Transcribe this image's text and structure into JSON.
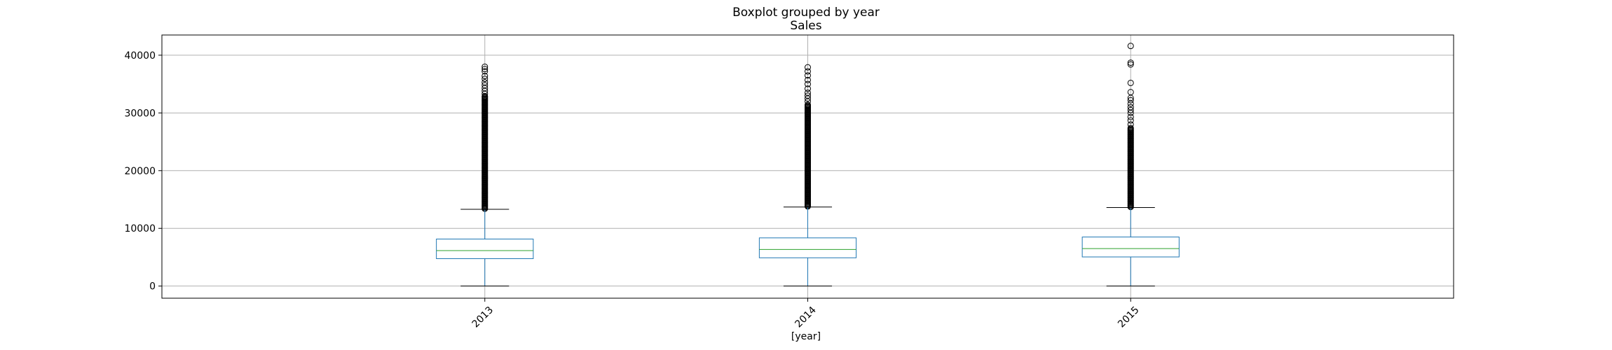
{
  "chart_data": {
    "type": "boxplot",
    "suptitle": "Boxplot grouped by year",
    "title": "Sales",
    "xlabel": "[year]",
    "ylabel": "",
    "categories": [
      "2013",
      "2014",
      "2015"
    ],
    "ylim": [
      -2100,
      43500
    ],
    "yticks": [
      0,
      10000,
      20000,
      30000,
      40000
    ],
    "grid": true,
    "boxes": [
      {
        "category": "2013",
        "whisker_low": 0,
        "q1": 4750,
        "median": 6150,
        "q3": 8150,
        "whisker_high": 13300,
        "outliers_dense_range": [
          13400,
          33000
        ],
        "outliers": [
          33300,
          33800,
          34300,
          34800,
          35300,
          35900,
          36400,
          37200,
          37600,
          38000
        ]
      },
      {
        "category": "2014",
        "whisker_low": 0,
        "q1": 4900,
        "median": 6350,
        "q3": 8350,
        "whisker_high": 13700,
        "outliers_dense_range": [
          13800,
          31500
        ],
        "outliers": [
          32000,
          32500,
          33000,
          33500,
          34200,
          35000,
          35700,
          36500,
          37200,
          37900
        ]
      },
      {
        "category": "2015",
        "whisker_low": 0,
        "q1": 5050,
        "median": 6500,
        "q3": 8500,
        "whisker_high": 13600,
        "outliers_dense_range": [
          13700,
          27500
        ],
        "outliers": [
          28000,
          28700,
          29300,
          30000,
          30500,
          31000,
          31600,
          32200,
          32600,
          33600,
          35200,
          38400,
          38700,
          41600
        ]
      }
    ],
    "colors": {
      "box": "#1f77b4",
      "median": "#2ca02c",
      "cap": "#000000",
      "grid": "#b0b0b0",
      "flier_edge": "#000000"
    }
  }
}
